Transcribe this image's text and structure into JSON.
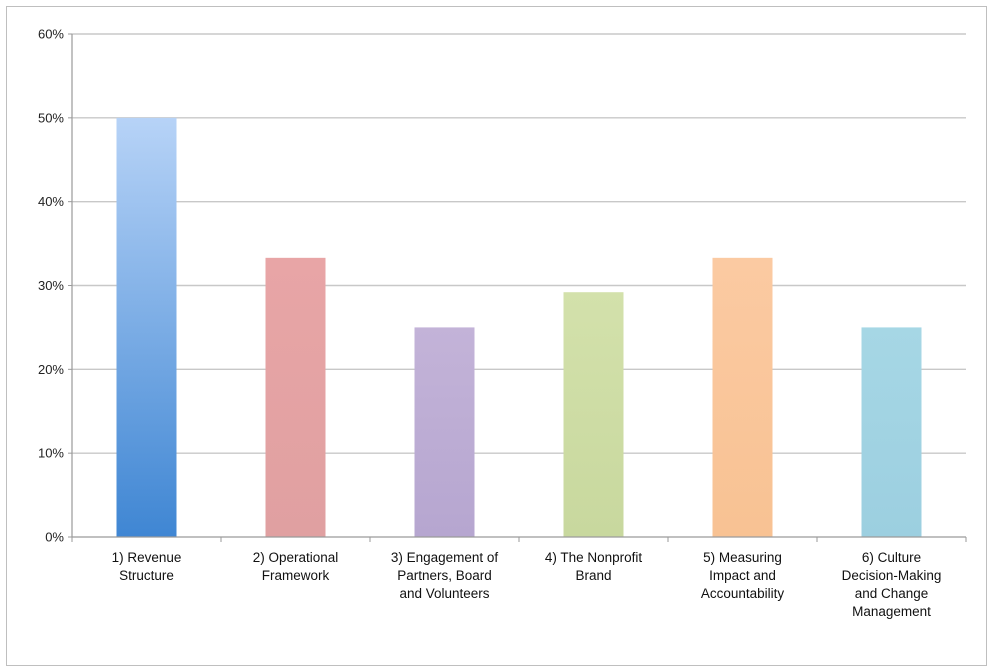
{
  "chart_data": {
    "type": "bar",
    "title": "",
    "xlabel": "",
    "ylabel": "",
    "ylim": [
      0,
      0.6
    ],
    "yticks": [
      0,
      0.1,
      0.2,
      0.3,
      0.4,
      0.5,
      0.6
    ],
    "ytick_labels": [
      "0%",
      "10%",
      "20%",
      "30%",
      "40%",
      "50%",
      "60%"
    ],
    "grid": true,
    "legend": "none",
    "categories": [
      "1) Revenue Structure",
      "2) Operational Framework",
      "3) Engagement of Partners, Board and Volunteers",
      "4) The Nonprofit Brand",
      "5) Measuring Impact and Accountability",
      "6) Culture Decision-Making and Change Management"
    ],
    "category_lines": [
      [
        "1) Revenue",
        "Structure"
      ],
      [
        "2) Operational",
        "Framework"
      ],
      [
        "3) Engagement of",
        "Partners, Board",
        "and Volunteers"
      ],
      [
        "4) The Nonprofit",
        "Brand"
      ],
      [
        "5) Measuring",
        "Impact and",
        "Accountability"
      ],
      [
        "6) Culture",
        "Decision-Making",
        "and Change",
        "Management"
      ]
    ],
    "values": [
      0.5,
      0.333,
      0.25,
      0.292,
      0.333,
      0.25
    ],
    "colors": [
      [
        "#b7d3f7",
        "#3f86d3"
      ],
      [
        "#e8a5a6",
        "#e0a0a1"
      ],
      [
        "#c3b3d8",
        "#b6a6d0"
      ],
      [
        "#d3e1ab",
        "#c8d89e"
      ],
      [
        "#fbcaa2",
        "#f8c293"
      ],
      [
        "#a6d7e5",
        "#9ccfe0"
      ]
    ],
    "gridline_color": "#c8c8c8",
    "axis_color": "#9a9a9a"
  }
}
